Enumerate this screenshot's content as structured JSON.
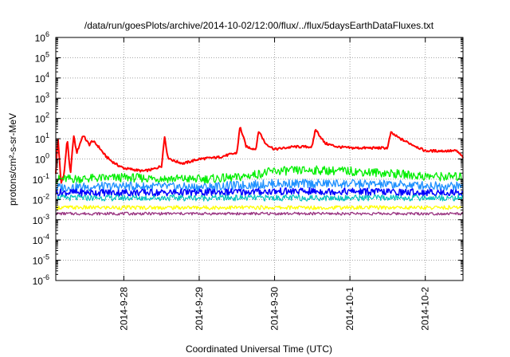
{
  "chart_data": {
    "type": "line",
    "title": "/data/run/goesPlots/archive/2014-10-02/12:00/flux/../flux/5daysEarthDataFluxes.txt",
    "xlabel": "Coordinated Universal Time (UTC)",
    "ylabel": "protons/cm²-s-sr-MeV",
    "y_scale": "log",
    "ylim": [
      1e-06,
      1000000.0
    ],
    "y_ticks": [
      {
        "base": "10",
        "exp": "6"
      },
      {
        "base": "10",
        "exp": "5"
      },
      {
        "base": "10",
        "exp": "4"
      },
      {
        "base": "10",
        "exp": "3"
      },
      {
        "base": "10",
        "exp": "2"
      },
      {
        "base": "10",
        "exp": "1"
      },
      {
        "base": "10",
        "exp": "0"
      },
      {
        "base": "10",
        "exp": "-1"
      },
      {
        "base": "10",
        "exp": "-2"
      },
      {
        "base": "10",
        "exp": "-3"
      },
      {
        "base": "10",
        "exp": "-4"
      },
      {
        "base": "10",
        "exp": "-5"
      },
      {
        "base": "10",
        "exp": "-6"
      }
    ],
    "xlim": [
      "2014-09-27T02:20",
      "2014-10-02T12:00"
    ],
    "x_ticks": [
      "2014-9-28",
      "2014-9-29",
      "2014-9-30",
      "2014-10-1",
      "2014-10-2"
    ],
    "grid": true,
    "series": [
      {
        "color": "#ff0000",
        "x": [
          "2014-09-27T02:20",
          "2014-09-27T03:00",
          "2014-09-27T04:00",
          "2014-09-27T05:00",
          "2014-09-27T06:00",
          "2014-09-27T07:00",
          "2014-09-27T08:00",
          "2014-09-27T09:00",
          "2014-09-27T11:00",
          "2014-09-27T13:00",
          "2014-09-27T14:00",
          "2014-09-27T16:00",
          "2014-09-27T18:00",
          "2014-09-27T20:00",
          "2014-09-27T22:00",
          "2014-09-28T00:00",
          "2014-09-28T03:00",
          "2014-09-28T06:00",
          "2014-09-28T09:00",
          "2014-09-28T12:00",
          "2014-09-28T13:00",
          "2014-09-28T14:00",
          "2014-09-28T16:00",
          "2014-09-28T19:00",
          "2014-09-29T00:00",
          "2014-09-29T06:00",
          "2014-09-29T12:00",
          "2014-09-29T13:00",
          "2014-09-29T15:00",
          "2014-09-29T18:00",
          "2014-09-29T19:00",
          "2014-09-29T21:00",
          "2014-09-30T00:00",
          "2014-09-30T06:00",
          "2014-09-30T12:00",
          "2014-09-30T13:00",
          "2014-09-30T16:00",
          "2014-09-30T20:00",
          "2014-10-01T00:00",
          "2014-10-01T06:00",
          "2014-10-01T12:00",
          "2014-10-01T13:00",
          "2014-10-01T16:00",
          "2014-10-01T20:00",
          "2014-10-02T00:00",
          "2014-10-02T06:00",
          "2014-10-02T10:00",
          "2014-10-02T12:00"
        ],
        "values": [
          0.2,
          14,
          0.06,
          0.2,
          10,
          0.15,
          15,
          2,
          15,
          5,
          8,
          4,
          1.5,
          0.8,
          0.5,
          0.35,
          0.3,
          0.25,
          0.3,
          0.45,
          13,
          1.2,
          0.8,
          0.6,
          1.0,
          1.2,
          2.0,
          40,
          4,
          3,
          25,
          6,
          3,
          4,
          4,
          30,
          6,
          4,
          3.5,
          3.5,
          3.5,
          20,
          10,
          5,
          2.5,
          2.5,
          2.5,
          1.2
        ]
      },
      {
        "color": "#00ee00",
        "x": [
          "2014-09-27T02:20",
          "2014-09-28T00:00",
          "2014-09-29T00:00",
          "2014-09-29T12:00",
          "2014-09-30T00:00",
          "2014-09-30T12:00",
          "2014-10-01T00:00",
          "2014-10-01T12:00",
          "2014-10-02T00:00",
          "2014-10-02T12:00"
        ],
        "values": [
          0.1,
          0.12,
          0.1,
          0.12,
          0.25,
          0.28,
          0.25,
          0.2,
          0.14,
          0.13
        ]
      },
      {
        "color": "#1e90ff",
        "x": [
          "2014-09-27T02:20",
          "2014-09-28T00:00",
          "2014-09-29T00:00",
          "2014-09-30T00:00",
          "2014-10-01T00:00",
          "2014-10-02T00:00",
          "2014-10-02T12:00"
        ],
        "values": [
          0.04,
          0.045,
          0.04,
          0.06,
          0.06,
          0.05,
          0.045
        ]
      },
      {
        "color": "#0000ff",
        "x": [
          "2014-09-27T02:20",
          "2014-09-28T00:00",
          "2014-09-29T00:00",
          "2014-09-30T00:00",
          "2014-10-01T00:00",
          "2014-10-02T00:00",
          "2014-10-02T12:00"
        ],
        "values": [
          0.022,
          0.022,
          0.022,
          0.025,
          0.025,
          0.022,
          0.022
        ]
      },
      {
        "color": "#00c0c0",
        "x": [
          "2014-09-27T02:20",
          "2014-09-30T00:00",
          "2014-10-02T12:00"
        ],
        "values": [
          0.012,
          0.012,
          0.012
        ]
      },
      {
        "color": "#ffff00",
        "x": [
          "2014-09-27T02:20",
          "2014-09-30T00:00",
          "2014-10-02T12:00"
        ],
        "values": [
          0.004,
          0.004,
          0.004
        ]
      },
      {
        "color": "#993380",
        "x": [
          "2014-09-27T02:20",
          "2014-09-30T00:00",
          "2014-10-02T12:00"
        ],
        "values": [
          0.002,
          0.002,
          0.002
        ]
      }
    ]
  }
}
